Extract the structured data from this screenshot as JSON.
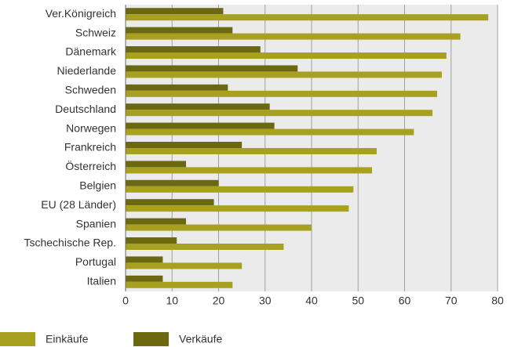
{
  "chart_data": {
    "type": "barh",
    "categories": [
      "Ver.Königreich",
      "Schweiz",
      "Dänemark",
      "Niederlande",
      "Schweden",
      "Deutschland",
      "Norwegen",
      "Frankreich",
      "Österreich",
      "Belgien",
      "EU (28 Länder)",
      "Spanien",
      "Tschechische Rep.",
      "Portugal",
      "Italien"
    ],
    "series": [
      {
        "name": "Einkäufe",
        "color": "#a7a11f",
        "values": [
          78,
          72,
          69,
          68,
          67,
          66,
          62,
          54,
          53,
          49,
          48,
          40,
          34,
          25,
          23
        ]
      },
      {
        "name": "Verkäufe",
        "color": "#6c6711",
        "values": [
          21,
          23,
          29,
          37,
          22,
          31,
          32,
          25,
          13,
          20,
          19,
          13,
          11,
          8,
          8
        ]
      }
    ],
    "xlim": [
      0,
      80
    ],
    "xticks": [
      0,
      10,
      20,
      30,
      40,
      50,
      60,
      70,
      80
    ],
    "grid": true,
    "legend": "bottom"
  }
}
